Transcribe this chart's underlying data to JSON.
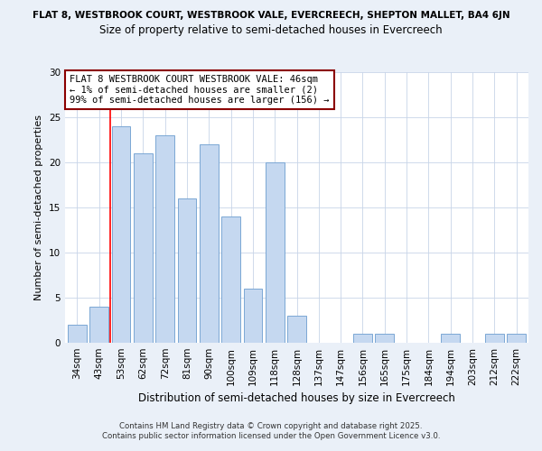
{
  "title_top": "FLAT 8, WESTBROOK COURT, WESTBROOK VALE, EVERCREECH, SHEPTON MALLET, BA4 6JN",
  "title_main": "Size of property relative to semi-detached houses in Evercreech",
  "xlabel": "Distribution of semi-detached houses by size in Evercreech",
  "ylabel": "Number of semi-detached properties",
  "categories": [
    "34sqm",
    "43sqm",
    "53sqm",
    "62sqm",
    "72sqm",
    "81sqm",
    "90sqm",
    "100sqm",
    "109sqm",
    "118sqm",
    "128sqm",
    "137sqm",
    "147sqm",
    "156sqm",
    "165sqm",
    "175sqm",
    "184sqm",
    "194sqm",
    "203sqm",
    "212sqm",
    "222sqm"
  ],
  "values": [
    2,
    4,
    24,
    21,
    23,
    16,
    22,
    14,
    6,
    20,
    3,
    0,
    0,
    1,
    1,
    0,
    0,
    1,
    0,
    1,
    1
  ],
  "bar_color": "#c5d8f0",
  "bar_edge_color": "#7ba7d4",
  "red_line_x": 1.5,
  "ylim": [
    0,
    30
  ],
  "yticks": [
    0,
    5,
    10,
    15,
    20,
    25,
    30
  ],
  "annotation_line1": "FLAT 8 WESTBROOK COURT WESTBROOK VALE: 46sqm",
  "annotation_line2": "← 1% of semi-detached houses are smaller (2)",
  "annotation_line3": "99% of semi-detached houses are larger (156) →",
  "footer_line1": "Contains HM Land Registry data © Crown copyright and database right 2025.",
  "footer_line2": "Contains public sector information licensed under the Open Government Licence v3.0.",
  "background_color": "#eaf0f8",
  "plot_bg_color": "#ffffff",
  "grid_color": "#c8d4e8"
}
